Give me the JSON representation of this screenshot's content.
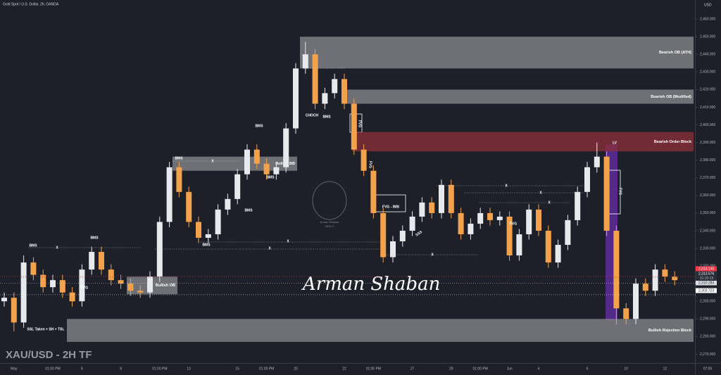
{
  "chart_data": {
    "type": "candlestick",
    "title": "Gold Spot / U.S. Dollar, 2h, OANDA",
    "currency": "USD",
    "corner_label": "XAU/USD - 2H TF",
    "watermark": "Arman Shaban",
    "logo_text": [
      "Arman Shaban",
      "2024 ©"
    ],
    "categories": [
      null,
      "May",
      null,
      null,
      null,
      "01:00 PM",
      null,
      null,
      "6",
      null,
      null,
      null,
      "8",
      null,
      null,
      null,
      "01:00 PM",
      null,
      null,
      "13",
      null,
      null,
      null,
      null,
      "15",
      null,
      null,
      "01:00 PM",
      null,
      null,
      "20",
      null,
      null,
      null,
      null,
      "22",
      null,
      null,
      "01:00 PM",
      null,
      null,
      null,
      "27",
      null,
      null,
      null,
      "29",
      null,
      null,
      "01:00 PM",
      null,
      null,
      "Jun",
      null,
      null,
      "4",
      null,
      null,
      null,
      null,
      "6",
      null,
      null,
      null,
      "10",
      null,
      null,
      null,
      "12",
      null
    ],
    "x_end_label": "07:00",
    "open": [
      2300,
      2302,
      2288,
      2322,
      2315,
      2308,
      2312,
      2305,
      2300,
      2318,
      2328,
      2318,
      2312,
      2310,
      2306,
      2305,
      2314,
      2345,
      2376,
      2362,
      2345,
      2336,
      2338,
      2352,
      2358,
      2372,
      2386,
      2378,
      2372,
      2376,
      2398,
      2432,
      2440,
      2412,
      2418,
      2426,
      2412,
      2386,
      2374,
      2350,
      2325,
      2334,
      2340,
      2348,
      2356,
      2350,
      2366,
      2350,
      2338,
      2344,
      2350,
      2346,
      2348,
      2326,
      2338,
      2352,
      2340,
      2322,
      2332,
      2346,
      2362,
      2376,
      2382,
      2340,
      2296,
      2290,
      2310,
      2306,
      2318,
      2314
    ],
    "high": [
      2305,
      2305,
      2326,
      2325,
      2318,
      2315,
      2315,
      2308,
      2321,
      2331,
      2331,
      2321,
      2315,
      2313,
      2309,
      2317,
      2348,
      2379,
      2379,
      2365,
      2348,
      2341,
      2355,
      2361,
      2375,
      2389,
      2389,
      2381,
      2379,
      2401,
      2435,
      2447,
      2443,
      2421,
      2429,
      2429,
      2415,
      2389,
      2377,
      2353,
      2337,
      2343,
      2351,
      2359,
      2359,
      2369,
      2369,
      2353,
      2347,
      2353,
      2353,
      2351,
      2351,
      2341,
      2355,
      2355,
      2343,
      2335,
      2349,
      2365,
      2379,
      2390,
      2385,
      2343,
      2299,
      2313,
      2313,
      2321,
      2321,
      2317
    ],
    "low": [
      2297,
      2283,
      2285,
      2312,
      2305,
      2305,
      2302,
      2297,
      2297,
      2315,
      2315,
      2309,
      2307,
      2303,
      2302,
      2302,
      2311,
      2342,
      2359,
      2342,
      2333,
      2333,
      2335,
      2349,
      2355,
      2369,
      2375,
      2369,
      2369,
      2373,
      2395,
      2429,
      2409,
      2409,
      2415,
      2409,
      2383,
      2371,
      2347,
      2322,
      2322,
      2331,
      2337,
      2345,
      2347,
      2347,
      2347,
      2335,
      2335,
      2341,
      2343,
      2343,
      2323,
      2323,
      2335,
      2337,
      2319,
      2319,
      2329,
      2343,
      2359,
      2373,
      2337,
      2287,
      2287,
      2287,
      2303,
      2303,
      2311,
      2309
    ],
    "close": [
      2302,
      2288,
      2322,
      2315,
      2308,
      2312,
      2305,
      2300,
      2318,
      2328,
      2318,
      2312,
      2310,
      2306,
      2305,
      2314,
      2345,
      2376,
      2362,
      2345,
      2336,
      2338,
      2352,
      2358,
      2372,
      2386,
      2378,
      2372,
      2376,
      2398,
      2432,
      2440,
      2412,
      2418,
      2426,
      2412,
      2386,
      2374,
      2350,
      2325,
      2334,
      2340,
      2348,
      2356,
      2350,
      2366,
      2350,
      2338,
      2344,
      2350,
      2346,
      2348,
      2326,
      2338,
      2352,
      2340,
      2322,
      2332,
      2346,
      2362,
      2376,
      2382,
      2340,
      2296,
      2290,
      2310,
      2306,
      2318,
      2314,
      2312
    ],
    "up_color": "#e8e9ed",
    "down_color": "#f3a24b",
    "ylim": [
      2265,
      2470
    ],
    "yticks": [
      {
        "value": 2460,
        "label": "2,460.000"
      },
      {
        "value": 2450,
        "label": "2,450.000"
      },
      {
        "value": 2440,
        "label": "2,440.000"
      },
      {
        "value": 2430,
        "label": "2,430.000"
      },
      {
        "value": 2420,
        "label": "2,420.000"
      },
      {
        "value": 2410,
        "label": "2,410.000"
      },
      {
        "value": 2400,
        "label": "2,400.000"
      },
      {
        "value": 2390,
        "label": "2,390.000"
      },
      {
        "value": 2380,
        "label": "2,380.000"
      },
      {
        "value": 2370,
        "label": "2,370.000"
      },
      {
        "value": 2360,
        "label": "2,360.000"
      },
      {
        "value": 2350,
        "label": "2,350.000"
      },
      {
        "value": 2340,
        "label": "2,340.000"
      },
      {
        "value": 2330,
        "label": "2,330.000"
      },
      {
        "value": 2320,
        "label": "2,320.000"
      },
      {
        "value": 2310,
        "label": "2,310.000"
      },
      {
        "value": 2300,
        "label": "2,300.000"
      },
      {
        "value": 2290,
        "label": "2,290.000"
      },
      {
        "value": 2280,
        "label": "2,280.000"
      },
      {
        "value": 2270,
        "label": "2,270.000"
      }
    ],
    "price_labels": [
      {
        "value": 2314.145,
        "label": "2,314.145"
      },
      {
        "value": 2313.576,
        "label": "2,313.576"
      },
      {
        "value": 2310.283,
        "label": "2,310.283"
      },
      {
        "value": 2303.723,
        "label": "2,303.723"
      }
    ],
    "countdown": "01:25:15",
    "zones": [
      {
        "label": "Bearish OB (ATH)",
        "top": 2450,
        "bottom": 2432,
        "color": "#8a8b8f"
      },
      {
        "label": "Bearish OB (Modified)",
        "top": 2420,
        "bottom": 2412,
        "color": "#8a8b8f"
      },
      {
        "label": "Bearish Order Block",
        "top": 2396,
        "bottom": 2385,
        "color": "#8c2f3a"
      },
      {
        "label": "Bullish BB",
        "top": 2382,
        "bottom": 2374,
        "color": "#8a8b8f"
      },
      {
        "label": "Bullish OB",
        "top": 2314,
        "bottom": 2304,
        "color": "#8a8b8f"
      },
      {
        "label": "Bullish Rejection Block",
        "top": 2290,
        "bottom": 2277,
        "color": "#8a8b8f"
      }
    ],
    "annotations": [
      "BMS",
      "BMS",
      "BMS",
      "BMS",
      "BMS",
      "BMS",
      "BMS",
      "CHOCH",
      "BMS",
      "FVG",
      "FVG",
      "FVG",
      "FVG - IMB",
      "SSS",
      "FVG",
      "FVG",
      "LV",
      "SSL Taken + SH + TSL",
      "X",
      "X",
      "X",
      "X",
      "X",
      "X",
      "X",
      "X"
    ]
  }
}
